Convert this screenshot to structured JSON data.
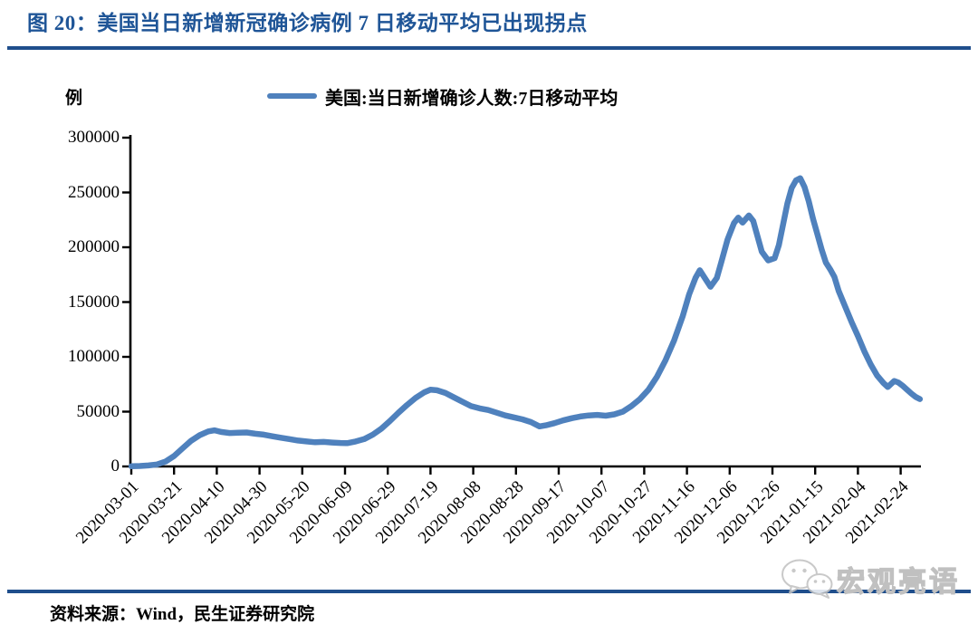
{
  "figure": {
    "title": "图 20：美国当日新增新冠确诊病例 7 日移动平均已出现拐点",
    "source_note": "资料来源：Wind，民生证券研究院",
    "watermark": "宏观亮语"
  },
  "colors": {
    "title_blue": "#1F5597",
    "rule_blue": "#1F4E8C",
    "line_blue": "#4F81BD",
    "axis_black": "#000000",
    "watermark_gray": "#C0C0C0"
  },
  "chart_data": {
    "type": "line",
    "title": "图 20：美国当日新增新冠确诊病例 7 日移动平均已出现拐点",
    "unit_label": "例",
    "legend": [
      "美国:当日新增确诊人数:7日移动平均"
    ],
    "legend_position": "top-center",
    "grid": false,
    "ylim": [
      0,
      300000
    ],
    "y_ticks": [
      0,
      50000,
      100000,
      150000,
      200000,
      250000,
      300000
    ],
    "x_tick_interval_days": 20,
    "x_tick_labels": [
      "2020-03-01",
      "2020-03-21",
      "2020-04-10",
      "2020-04-30",
      "2020-05-20",
      "2020-06-09",
      "2020-06-29",
      "2020-07-19",
      "2020-08-08",
      "2020-08-28",
      "2020-09-17",
      "2020-10-07",
      "2020-10-27",
      "2020-11-16",
      "2020-12-06",
      "2020-12-26",
      "2021-01-15",
      "2021-02-04",
      "2021-02-24"
    ],
    "series": [
      {
        "name": "美国:当日新增确诊人数:7日移动平均",
        "points": [
          [
            "2020-03-01",
            200
          ],
          [
            "2020-03-05",
            400
          ],
          [
            "2020-03-09",
            900
          ],
          [
            "2020-03-13",
            1800
          ],
          [
            "2020-03-17",
            4500
          ],
          [
            "2020-03-21",
            9500
          ],
          [
            "2020-03-25",
            16500
          ],
          [
            "2020-03-29",
            23500
          ],
          [
            "2020-04-02",
            28500
          ],
          [
            "2020-04-06",
            32000
          ],
          [
            "2020-04-09",
            33000
          ],
          [
            "2020-04-12",
            31500
          ],
          [
            "2020-04-16",
            30500
          ],
          [
            "2020-04-20",
            30800
          ],
          [
            "2020-04-24",
            31000
          ],
          [
            "2020-04-28",
            29800
          ],
          [
            "2020-05-02",
            29000
          ],
          [
            "2020-05-06",
            27500
          ],
          [
            "2020-05-10",
            26200
          ],
          [
            "2020-05-14",
            25000
          ],
          [
            "2020-05-18",
            23600
          ],
          [
            "2020-05-22",
            22800
          ],
          [
            "2020-05-26",
            22100
          ],
          [
            "2020-05-30",
            22400
          ],
          [
            "2020-06-03",
            21800
          ],
          [
            "2020-06-07",
            21400
          ],
          [
            "2020-06-10",
            21200
          ],
          [
            "2020-06-14",
            22800
          ],
          [
            "2020-06-18",
            25000
          ],
          [
            "2020-06-22",
            29000
          ],
          [
            "2020-06-26",
            34500
          ],
          [
            "2020-06-30",
            41500
          ],
          [
            "2020-07-04",
            49000
          ],
          [
            "2020-07-08",
            56000
          ],
          [
            "2020-07-12",
            62500
          ],
          [
            "2020-07-16",
            67500
          ],
          [
            "2020-07-19",
            70000
          ],
          [
            "2020-07-22",
            69500
          ],
          [
            "2020-07-26",
            67000
          ],
          [
            "2020-07-30",
            63000
          ],
          [
            "2020-08-03",
            59000
          ],
          [
            "2020-08-07",
            55000
          ],
          [
            "2020-08-11",
            53000
          ],
          [
            "2020-08-15",
            51500
          ],
          [
            "2020-08-19",
            49000
          ],
          [
            "2020-08-23",
            46500
          ],
          [
            "2020-08-27",
            44800
          ],
          [
            "2020-08-31",
            43000
          ],
          [
            "2020-09-04",
            40500
          ],
          [
            "2020-09-08",
            36500
          ],
          [
            "2020-09-11",
            37500
          ],
          [
            "2020-09-15",
            39500
          ],
          [
            "2020-09-19",
            42000
          ],
          [
            "2020-09-23",
            44000
          ],
          [
            "2020-09-27",
            45500
          ],
          [
            "2020-10-01",
            46500
          ],
          [
            "2020-10-05",
            47000
          ],
          [
            "2020-10-09",
            46300
          ],
          [
            "2020-10-13",
            47500
          ],
          [
            "2020-10-17",
            50000
          ],
          [
            "2020-10-21",
            55000
          ],
          [
            "2020-10-25",
            61500
          ],
          [
            "2020-10-29",
            70000
          ],
          [
            "2020-11-02",
            82000
          ],
          [
            "2020-11-06",
            97000
          ],
          [
            "2020-11-10",
            115000
          ],
          [
            "2020-11-14",
            137000
          ],
          [
            "2020-11-17",
            157000
          ],
          [
            "2020-11-20",
            172000
          ],
          [
            "2020-11-22",
            179000
          ],
          [
            "2020-11-25",
            170000
          ],
          [
            "2020-11-27",
            164000
          ],
          [
            "2020-11-30",
            172000
          ],
          [
            "2020-12-02",
            186000
          ],
          [
            "2020-12-05",
            207000
          ],
          [
            "2020-12-08",
            222000
          ],
          [
            "2020-12-10",
            227000
          ],
          [
            "2020-12-12",
            222500
          ],
          [
            "2020-12-15",
            229000
          ],
          [
            "2020-12-17",
            224000
          ],
          [
            "2020-12-19",
            210000
          ],
          [
            "2020-12-21",
            196000
          ],
          [
            "2020-12-24",
            188000
          ],
          [
            "2020-12-27",
            190000
          ],
          [
            "2020-12-29",
            202000
          ],
          [
            "2020-12-31",
            221000
          ],
          [
            "2021-01-02",
            240000
          ],
          [
            "2021-01-04",
            254000
          ],
          [
            "2021-01-06",
            261000
          ],
          [
            "2021-01-08",
            263000
          ],
          [
            "2021-01-10",
            255000
          ],
          [
            "2021-01-12",
            242000
          ],
          [
            "2021-01-14",
            226000
          ],
          [
            "2021-01-16",
            212000
          ],
          [
            "2021-01-18",
            198000
          ],
          [
            "2021-01-20",
            186000
          ],
          [
            "2021-01-22",
            180000
          ],
          [
            "2021-01-24",
            173000
          ],
          [
            "2021-01-26",
            160000
          ],
          [
            "2021-01-29",
            146000
          ],
          [
            "2021-02-01",
            132000
          ],
          [
            "2021-02-04",
            119000
          ],
          [
            "2021-02-07",
            105000
          ],
          [
            "2021-02-10",
            93000
          ],
          [
            "2021-02-13",
            83000
          ],
          [
            "2021-02-16",
            76000
          ],
          [
            "2021-02-18",
            72500
          ],
          [
            "2021-02-21",
            78000
          ],
          [
            "2021-02-23",
            76500
          ],
          [
            "2021-02-25",
            73500
          ],
          [
            "2021-02-27",
            70000
          ],
          [
            "2021-03-01",
            66500
          ],
          [
            "2021-03-03",
            63500
          ],
          [
            "2021-03-05",
            61500
          ]
        ]
      }
    ]
  }
}
